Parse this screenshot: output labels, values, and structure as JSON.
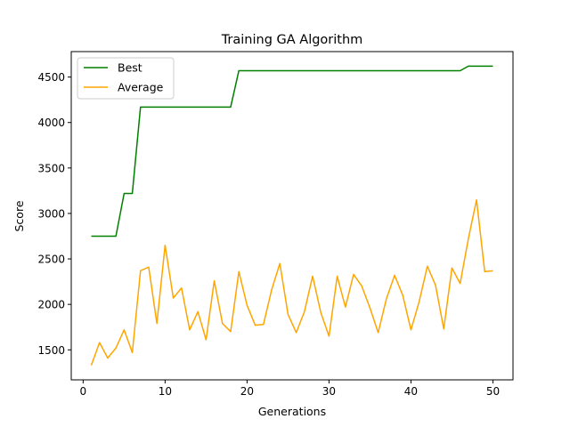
{
  "chart_data": {
    "type": "line",
    "title": "Training GA Algorithm",
    "xlabel": "Generations",
    "ylabel": "Score",
    "xlim": [
      -1.45,
      52.45
    ],
    "ylim": [
      1170,
      4780
    ],
    "xticks": [
      0,
      10,
      20,
      30,
      40,
      50
    ],
    "yticks": [
      1500,
      2000,
      2500,
      3000,
      3500,
      4000,
      4500
    ],
    "legend_position": "upper-left",
    "grid": false,
    "x": [
      1,
      2,
      3,
      4,
      5,
      6,
      7,
      8,
      9,
      10,
      11,
      12,
      13,
      14,
      15,
      16,
      17,
      18,
      19,
      20,
      21,
      22,
      23,
      24,
      25,
      26,
      27,
      28,
      29,
      30,
      31,
      32,
      33,
      34,
      35,
      36,
      37,
      38,
      39,
      40,
      41,
      42,
      43,
      44,
      45,
      46,
      47,
      48,
      49,
      50
    ],
    "series": [
      {
        "name": "Best",
        "color": "#008000",
        "values": [
          2750,
          2750,
          2750,
          2750,
          3220,
          3220,
          4170,
          4170,
          4170,
          4170,
          4170,
          4170,
          4170,
          4170,
          4170,
          4170,
          4170,
          4170,
          4570,
          4570,
          4570,
          4570,
          4570,
          4570,
          4570,
          4570,
          4570,
          4570,
          4570,
          4570,
          4570,
          4570,
          4570,
          4570,
          4570,
          4570,
          4570,
          4570,
          4570,
          4570,
          4570,
          4570,
          4570,
          4570,
          4570,
          4570,
          4620,
          4620,
          4620,
          4620
        ]
      },
      {
        "name": "Average",
        "color": "#FFA500",
        "values": [
          1330,
          1580,
          1410,
          1520,
          1720,
          1470,
          2370,
          2410,
          1790,
          2650,
          2070,
          2180,
          1720,
          1920,
          1610,
          2260,
          1790,
          1700,
          2360,
          1990,
          1770,
          1780,
          2160,
          2450,
          1890,
          1690,
          1920,
          2310,
          1910,
          1650,
          2310,
          1970,
          2330,
          2200,
          1960,
          1690,
          2060,
          2320,
          2100,
          1720,
          2030,
          2420,
          2210,
          1730,
          2400,
          2230,
          2720,
          3150,
          2360,
          2370
        ]
      }
    ]
  }
}
